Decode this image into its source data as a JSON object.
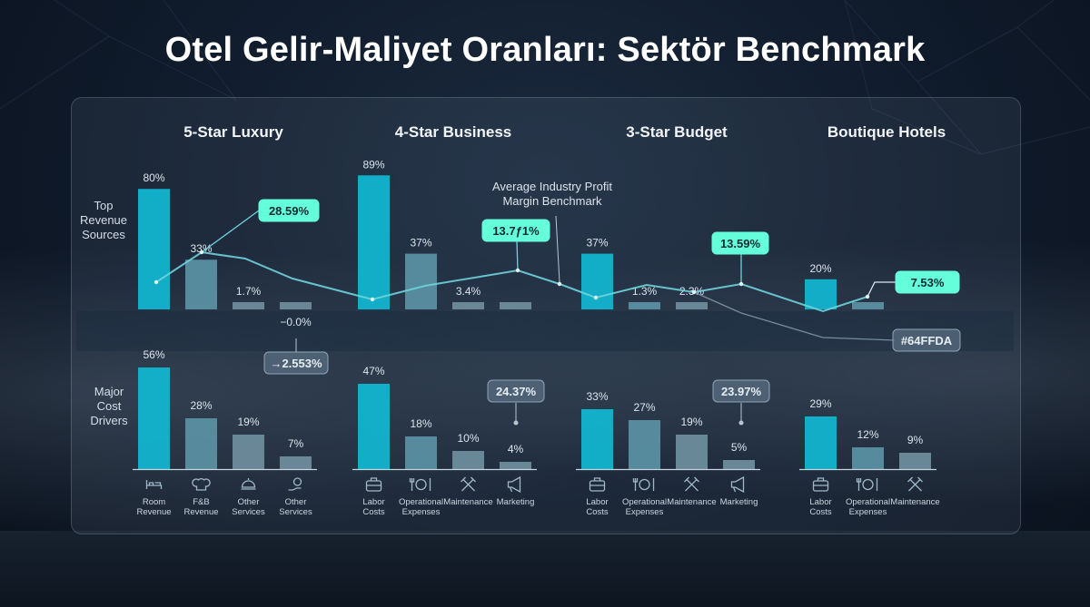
{
  "title": "Otel Gelir-Maliyet Oranları: Sektör Benchmark",
  "chart_data": {
    "type": "bar",
    "title": "Otel Gelir-Maliyet Oranları: Sektör Benchmark",
    "row_labels": {
      "top": [
        "Top",
        "Revenue",
        "Sources"
      ],
      "bottom": [
        "Major",
        "Cost",
        "Drivers"
      ]
    },
    "groups": [
      {
        "name": "5-Star Luxury",
        "categories": [
          {
            "label": [
              "Room",
              "Revenue"
            ],
            "icon": "bed-icon"
          },
          {
            "label": [
              "F&B",
              "Revenue"
            ],
            "icon": "chef-hat-icon"
          },
          {
            "label": [
              "Other",
              "Services"
            ],
            "icon": "service-bell-icon"
          },
          {
            "label": [
              "Other",
              "Services"
            ],
            "icon": "hand-coin-icon"
          }
        ],
        "revenue": [
          80,
          33,
          1.7,
          -0.0
        ],
        "revenue_labels": [
          "80%",
          "33%",
          "1.7%",
          "−0.0%"
        ],
        "cost": [
          56,
          28,
          19,
          7
        ],
        "cost_labels": [
          "56%",
          "28%",
          "19%",
          "7%"
        ]
      },
      {
        "name": "4-Star Business",
        "categories": [
          {
            "label": [
              "Labor",
              "Costs"
            ],
            "icon": "briefcase-icon"
          },
          {
            "label": [
              "Operational",
              "Expenses"
            ],
            "icon": "plate-cutlery-icon"
          },
          {
            "label": [
              "Maintenance"
            ],
            "icon": "tools-icon"
          },
          {
            "label": [
              "Marketing"
            ],
            "icon": "megaphone-icon"
          }
        ],
        "revenue": [
          89,
          37,
          3.4,
          0
        ],
        "revenue_labels": [
          "89%",
          "37%",
          "3.4%",
          ""
        ],
        "cost": [
          47,
          18,
          10,
          4
        ],
        "cost_labels": [
          "47%",
          "18%",
          "10%",
          "4%"
        ]
      },
      {
        "name": "3-Star Budget",
        "categories": [
          {
            "label": [
              "Labor",
              "Costs"
            ],
            "icon": "briefcase-icon"
          },
          {
            "label": [
              "Operational",
              "Expenses"
            ],
            "icon": "plate-cutlery-icon"
          },
          {
            "label": [
              "Maintenance"
            ],
            "icon": "tools-icon"
          },
          {
            "label": [
              "Marketing"
            ],
            "icon": "megaphone-icon"
          }
        ],
        "revenue": [
          37,
          1.3,
          2.3
        ],
        "revenue_labels": [
          "37%",
          "1.3%",
          "2.3%"
        ],
        "cost": [
          33,
          27,
          19,
          5
        ],
        "cost_labels": [
          "33%",
          "27%",
          "19%",
          "5%"
        ]
      },
      {
        "name": "Boutique Hotels",
        "categories": [
          {
            "label": [
              "Labor",
              "Costs"
            ],
            "icon": "briefcase-icon"
          },
          {
            "label": [
              "Operational",
              "Expenses"
            ],
            "icon": "plate-cutlery-icon"
          },
          {
            "label": [
              "Maintenance"
            ],
            "icon": "tools-icon"
          }
        ],
        "revenue": [
          20,
          1
        ],
        "revenue_labels": [
          "20%",
          ""
        ],
        "cost": [
          29,
          12,
          9
        ],
        "cost_labels": [
          "29%",
          "12%",
          "9%"
        ]
      }
    ],
    "benchmark_line": {
      "name": [
        "Average Industry Profit",
        "Margin Benchmark"
      ],
      "callouts": [
        "28.59%",
        "13.7ƒ1%",
        "13.59%",
        "7.53%"
      ],
      "side_label": "#64FFDA"
    },
    "cost_callouts": [
      "→2.553%",
      "24.37%",
      "23.97%"
    ],
    "colors": {
      "primary": "#12b4cf",
      "secondary": "#5a8fa2",
      "muted": "#6d8c9c",
      "line": "#6fd3dd",
      "callout": "#64FFDA"
    }
  }
}
